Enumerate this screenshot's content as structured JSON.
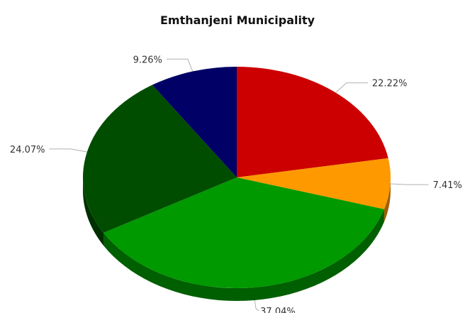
{
  "chart_data": {
    "type": "pie",
    "title": "Emthanjeni Municipality",
    "slices": [
      {
        "value": 22.22,
        "label": "22.22%",
        "color": "#cc0000"
      },
      {
        "value": 7.41,
        "label": "7.41%",
        "color": "#ff9900"
      },
      {
        "value": 37.04,
        "label": "37.04%",
        "color": "#009900"
      },
      {
        "value": 24.07,
        "label": "24.07%",
        "color": "#004d00"
      },
      {
        "value": 9.26,
        "label": "9.26%",
        "color": "#000066"
      }
    ],
    "three_d": true,
    "legend": "none"
  }
}
